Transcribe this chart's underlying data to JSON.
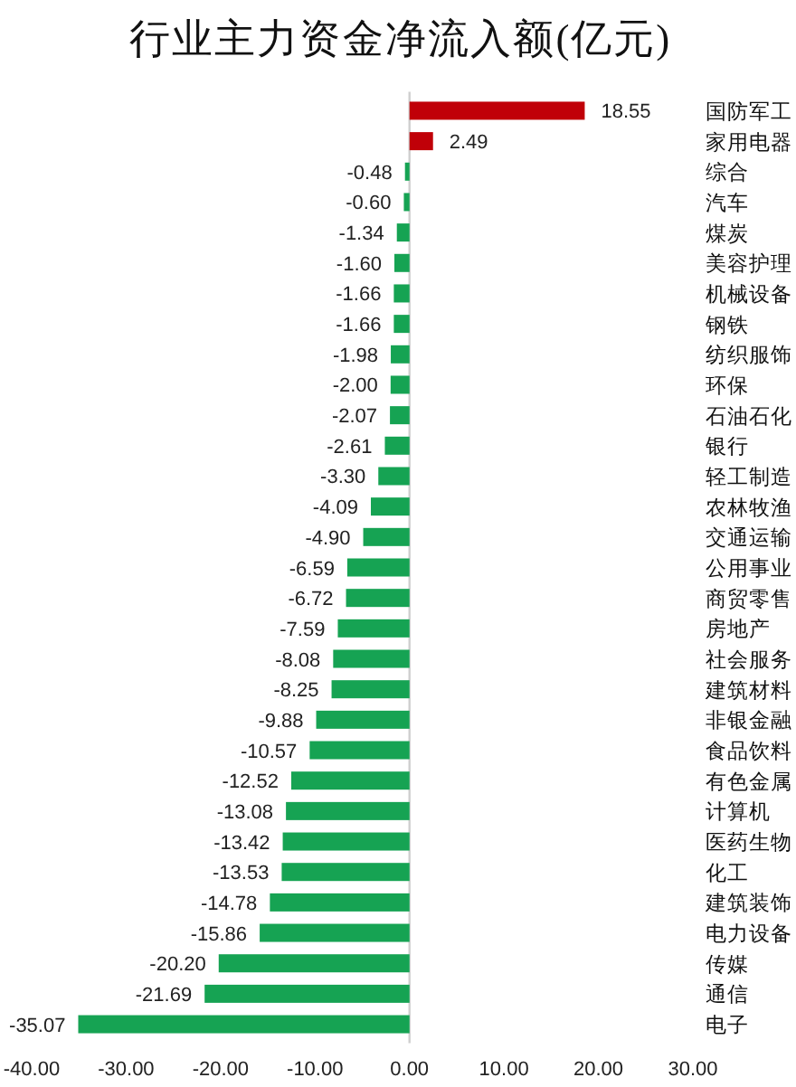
{
  "chart_data": {
    "type": "bar",
    "title": "行业主力资金净流入额(亿元)",
    "orientation": "horizontal",
    "categories": [
      "国防军工",
      "家用电器",
      "综合",
      "汽车",
      "煤炭",
      "美容护理",
      "机械设备",
      "钢铁",
      "纺织服饰",
      "环保",
      "石油石化",
      "银行",
      "轻工制造",
      "农林牧渔",
      "交通运输",
      "公用事业",
      "商贸零售",
      "房地产",
      "社会服务",
      "建筑材料",
      "非银金融",
      "食品饮料",
      "有色金属",
      "计算机",
      "医药生物",
      "化工",
      "建筑装饰",
      "电力设备",
      "传媒",
      "通信",
      "电子"
    ],
    "values": [
      18.55,
      2.49,
      -0.48,
      -0.6,
      -1.34,
      -1.6,
      -1.66,
      -1.66,
      -1.98,
      -2.0,
      -2.07,
      -2.61,
      -3.3,
      -4.09,
      -4.9,
      -6.59,
      -6.72,
      -7.59,
      -8.08,
      -8.25,
      -9.88,
      -10.57,
      -12.52,
      -13.08,
      -13.42,
      -13.53,
      -14.78,
      -15.86,
      -20.2,
      -21.69,
      -35.07
    ],
    "value_labels": [
      "18.55",
      "2.49",
      "-0.48",
      "-0.60",
      "-1.34",
      "-1.60",
      "-1.66",
      "-1.66",
      "-1.98",
      "-2.00",
      "-2.07",
      "-2.61",
      "-3.30",
      "-4.09",
      "-4.90",
      "-6.59",
      "-6.72",
      "-7.59",
      "-8.08",
      "-8.25",
      "-9.88",
      "-10.57",
      "-12.52",
      "-13.08",
      "-13.42",
      "-13.53",
      "-14.78",
      "-15.86",
      "-20.20",
      "-21.69",
      "-35.07"
    ],
    "colors": [
      "#c00008",
      "#c00008",
      "#16a353",
      "#16a353",
      "#16a353",
      "#16a353",
      "#16a353",
      "#16a353",
      "#16a353",
      "#16a353",
      "#16a353",
      "#16a353",
      "#16a353",
      "#16a353",
      "#16a353",
      "#16a353",
      "#16a353",
      "#16a353",
      "#16a353",
      "#16a353",
      "#16a353",
      "#16a353",
      "#16a353",
      "#16a353",
      "#16a353",
      "#16a353",
      "#16a353",
      "#16a353",
      "#16a353",
      "#16a353",
      "#16a353"
    ],
    "xlim": [
      -40,
      30
    ],
    "xticks": [
      {
        "value": -40,
        "label": "-40.00"
      },
      {
        "value": -30,
        "label": "-30.00"
      },
      {
        "value": -20,
        "label": "-20.00"
      },
      {
        "value": -10,
        "label": "-10.00"
      },
      {
        "value": 0,
        "label": "0.00"
      },
      {
        "value": 10,
        "label": "10.00"
      },
      {
        "value": 20,
        "label": "20.00"
      },
      {
        "value": 30,
        "label": "30.00"
      }
    ]
  }
}
